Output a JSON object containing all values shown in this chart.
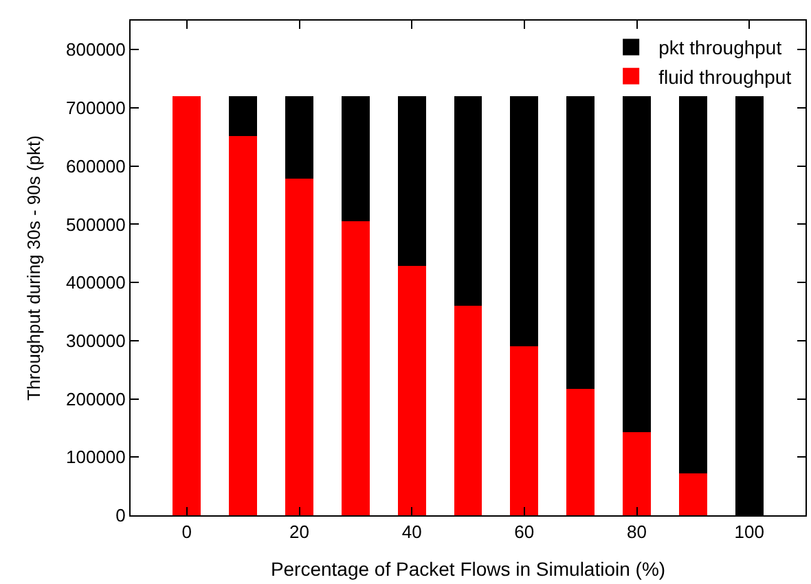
{
  "chart_data": {
    "type": "bar",
    "stacked": true,
    "xlabel": "Percentage of Packet Flows in Simulatioin (%)",
    "ylabel": "Throughput during 30s - 90s (pkt)",
    "x": [
      0,
      10,
      20,
      30,
      40,
      50,
      60,
      70,
      80,
      90,
      100
    ],
    "series": [
      {
        "name": "fluid throughput",
        "color": "#ff0000",
        "values": [
          720000,
          652000,
          578000,
          505000,
          428000,
          360000,
          290000,
          217000,
          143000,
          72000,
          0
        ]
      },
      {
        "name": "pkt throughput",
        "color": "#000000",
        "values": [
          0,
          68000,
          142000,
          215000,
          292000,
          360000,
          430000,
          503000,
          577000,
          648000,
          720000
        ]
      }
    ],
    "xlim": [
      -10,
      110
    ],
    "xticks": [
      0,
      20,
      40,
      60,
      80,
      100
    ],
    "ylim": [
      0,
      850000
    ],
    "yticks": [
      0,
      100000,
      200000,
      300000,
      400000,
      500000,
      600000,
      700000,
      800000
    ],
    "legend": "top right"
  }
}
